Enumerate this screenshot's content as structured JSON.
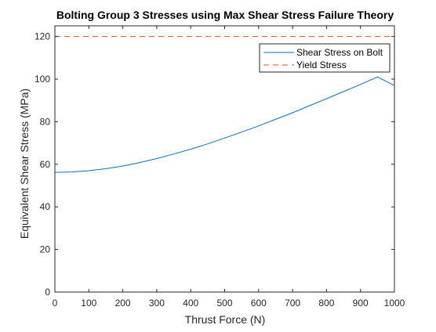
{
  "chart_data": {
    "type": "line",
    "title": "Bolting Group 3 Stresses using Max Shear Stress Failure Theory",
    "xlabel": "Thrust Force (N)",
    "ylabel": "Equivalent Shear Stress (MPa)",
    "xlim": [
      0,
      1000
    ],
    "ylim": [
      0,
      125
    ],
    "xticks": [
      "0",
      "100",
      "200",
      "300",
      "400",
      "500",
      "600",
      "700",
      "800",
      "900",
      "1000"
    ],
    "yticks": [
      "0",
      "20",
      "40",
      "60",
      "80",
      "100",
      "120"
    ],
    "grid": false,
    "legend_position": "top-right",
    "series": [
      {
        "name": "Shear Stress on Bolt",
        "color": "#0072BD",
        "style": "solid",
        "x": [
          0,
          50,
          100,
          150,
          200,
          250,
          300,
          350,
          400,
          450,
          500,
          550,
          600,
          650,
          700,
          750,
          800,
          850,
          900,
          950,
          1000
        ],
        "y": [
          56.2,
          56.4,
          57.0,
          57.9,
          59.2,
          60.8,
          62.7,
          64.8,
          67.1,
          69.6,
          72.3,
          75.1,
          78.0,
          81.1,
          84.2,
          87.5,
          90.8,
          94.1,
          97.5,
          101.0,
          97.0
        ]
      },
      {
        "name": "Yield Stress",
        "color": "#D95319",
        "style": "dashed",
        "x": [
          0,
          1000
        ],
        "y": [
          120,
          120
        ]
      }
    ]
  }
}
